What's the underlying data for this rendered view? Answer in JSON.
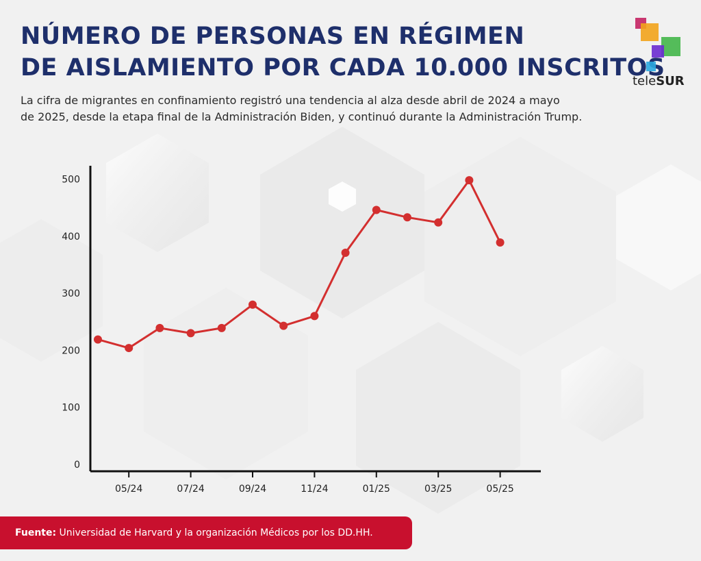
{
  "title_lines": [
    "NÚMERO DE PERSONAS EN RÉGIMEN",
    "DE AISLAMIENTO POR CADA 10.000 INSCRITOS"
  ],
  "subtitle_lines": [
    "La cifra de migrantes en confinamiento registró una tendencia al alza desde abril de 2024 a mayo",
    "de 2025, desde la etapa final de la Administración Biden, y continuó durante la Administración Trump."
  ],
  "brand": {
    "prefix": "tele",
    "suffix": "SUR"
  },
  "source": {
    "label": "Fuente:",
    "text": "Universidad de Harvard y la organización Médicos por los DD.HH."
  },
  "colors": {
    "title": "#1e2f6b",
    "line": "#d32f2f",
    "source_bg": "#c8102e"
  },
  "chart_data": {
    "type": "line",
    "title": "NÚMERO DE PERSONAS EN RÉGIMEN DE AISLAMIENTO POR CADA 10.000 INSCRITOS",
    "xlabel": "",
    "ylabel": "",
    "x": [
      "04/24",
      "05/24",
      "06/24",
      "07/24",
      "08/24",
      "09/24",
      "10/24",
      "11/24",
      "12/24",
      "01/25",
      "02/25",
      "03/25",
      "04/25",
      "05/25"
    ],
    "x_tick_labels": [
      "05/24",
      "07/24",
      "09/24",
      "11/24",
      "01/25",
      "03/25",
      "05/25"
    ],
    "series": [
      {
        "name": "Personas en aislamiento por cada 10.000 inscritos",
        "values": [
          219,
          204,
          239,
          230,
          239,
          280,
          243,
          260,
          371,
          446,
          433,
          424,
          498,
          389
        ]
      }
    ],
    "y_ticks": [
      0,
      100,
      200,
      300,
      400,
      500
    ],
    "ylim": [
      0,
      520
    ],
    "grid": false,
    "legend": "none"
  }
}
